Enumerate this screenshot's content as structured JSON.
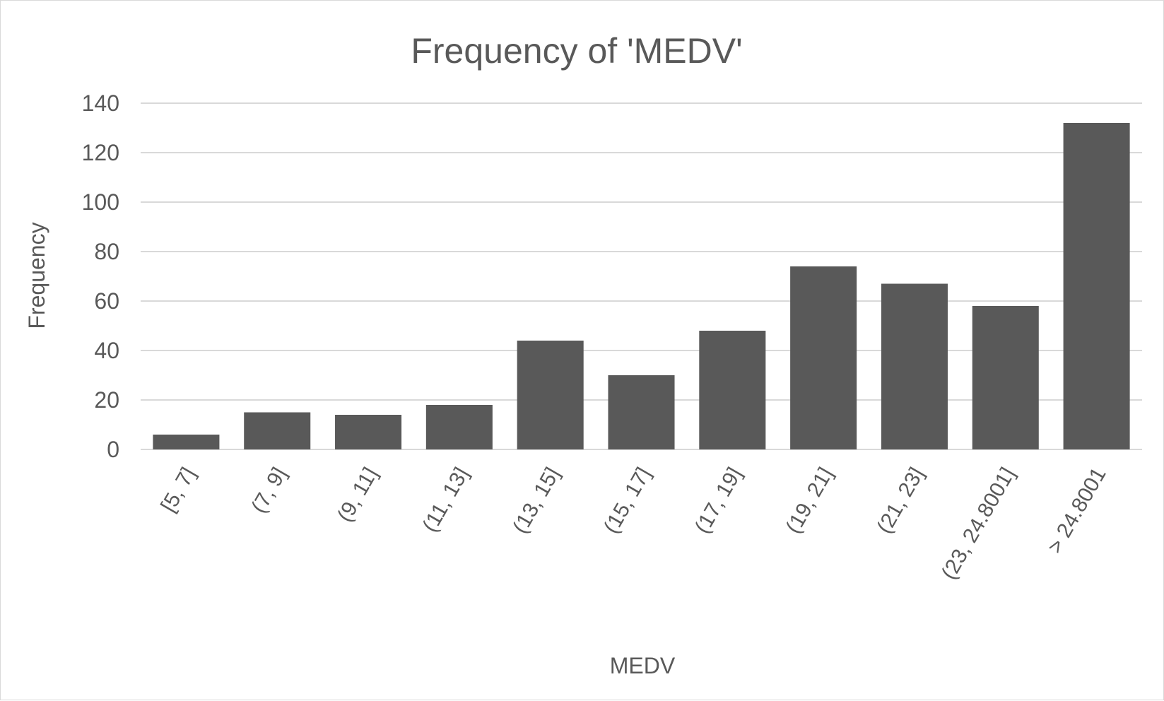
{
  "chart_data": {
    "type": "bar",
    "title": "Frequency of 'MEDV'",
    "xlabel": "MEDV",
    "ylabel": "Frequency",
    "categories": [
      "[5, 7]",
      "(7, 9]",
      "(9, 11]",
      "(11, 13]",
      "(13, 15]",
      "(15, 17]",
      "(17, 19]",
      "(19, 21]",
      "(21, 23]",
      "(23, 24.8001]",
      "> 24.8001"
    ],
    "values": [
      6,
      15,
      14,
      18,
      44,
      30,
      48,
      74,
      67,
      58,
      132
    ],
    "yticks": [
      "0",
      "20",
      "40",
      "60",
      "80",
      "100",
      "120",
      "140"
    ],
    "ylim": [
      0,
      140
    ],
    "grid": true,
    "legend": "none",
    "bar_color": "#595959",
    "grid_color": "#d9d9d9",
    "text_color": "#595959"
  }
}
